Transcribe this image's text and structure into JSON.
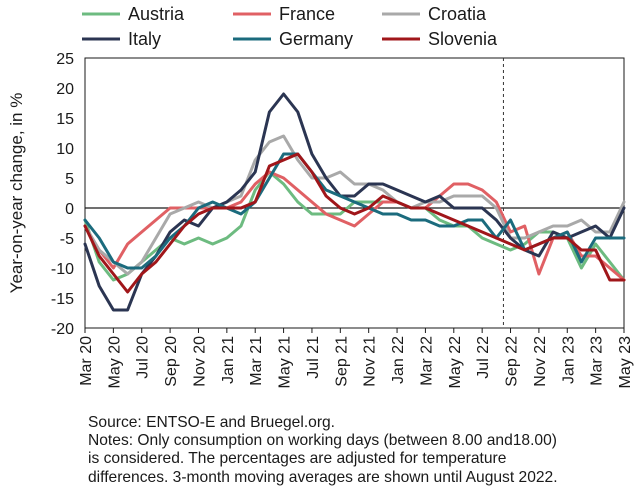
{
  "chart_data": {
    "type": "line",
    "ylabel": "Year-on-year change, in %",
    "ylim": [
      -20,
      25
    ],
    "yticks": [
      25,
      20,
      15,
      10,
      5,
      0,
      -5,
      -10,
      -15,
      -20
    ],
    "grid": false,
    "legend_position": "top",
    "x": [
      "Mar 20",
      "Apr 20",
      "May 20",
      "Jun 20",
      "Jul 20",
      "Aug 20",
      "Sep 20",
      "Oct 20",
      "Nov 20",
      "Dec 20",
      "Jan 21",
      "Feb 21",
      "Mar 21",
      "Apr 21",
      "May 21",
      "Jun 21",
      "Jul 21",
      "Aug 21",
      "Sep 21",
      "Oct 21",
      "Nov 21",
      "Dec 21",
      "Jan 22",
      "Feb 22",
      "Mar 22",
      "Apr 22",
      "May 22",
      "Jun 22",
      "Jul 22",
      "Aug 22",
      "Sep 22",
      "Oct 22",
      "Nov 22",
      "Dec 22",
      "Jan 23",
      "Feb 23",
      "Mar 23",
      "Apr 23",
      "May 23"
    ],
    "x_tick_labels": [
      "Mar 20",
      "May 20",
      "Jul 20",
      "Sep 20",
      "Nov 20",
      "Jan 21",
      "Mar 21",
      "May 21",
      "Jul 21",
      "Sep 21",
      "Nov 21",
      "Jan 22",
      "Mar 22",
      "May 22",
      "Jul 22",
      "Sep 22",
      "Nov 22",
      "Jan 23",
      "Mar 23",
      "May 23"
    ],
    "reference_line_after": "Aug 22",
    "series": [
      {
        "name": "Austria",
        "color": "#6dbb80",
        "values": [
          -2,
          -9,
          -12,
          -11,
          -9,
          -7,
          -5,
          -6,
          -5,
          -6,
          -5,
          -3,
          3,
          6,
          4,
          1,
          -1,
          -1,
          -1,
          1,
          1,
          1,
          1,
          0,
          0,
          -2,
          -3,
          -3,
          -5,
          -6,
          -7,
          -6,
          -4,
          -4,
          -5,
          -10,
          -6,
          -9,
          -12
        ]
      },
      {
        "name": "France",
        "color": "#e06064",
        "values": [
          -3,
          -7,
          -10,
          -6,
          -4,
          -2,
          0,
          0,
          0,
          0,
          0,
          1,
          4,
          6,
          5,
          3,
          1,
          -1,
          -2,
          -3,
          -1,
          1,
          1,
          0,
          0,
          2,
          4,
          4,
          3,
          1,
          -4,
          -3,
          -11,
          -5,
          -4,
          -8,
          -8,
          -10,
          -12
        ]
      },
      {
        "name": "Croatia",
        "color": "#a9a9a9",
        "values": [
          -3,
          -7,
          -9,
          -11,
          -9,
          -5,
          -1,
          0,
          1,
          0,
          1,
          2,
          8,
          11,
          12,
          8,
          5,
          5,
          6,
          4,
          4,
          3,
          1,
          0,
          1,
          1,
          2,
          2,
          2,
          0,
          -5,
          -5,
          -4,
          -3,
          -3,
          -2,
          -4,
          -4,
          1
        ]
      },
      {
        "name": "Italy",
        "color": "#2b3552",
        "values": [
          -6,
          -13,
          -17,
          -17,
          -11,
          -8,
          -4,
          -2,
          -3,
          0,
          1,
          3,
          6,
          16,
          19,
          16,
          9,
          5,
          2,
          2,
          4,
          4,
          3,
          2,
          1,
          2,
          0,
          0,
          0,
          -2,
          -5,
          -7,
          -8,
          -4,
          -5,
          -4,
          -3,
          -5,
          0
        ]
      },
      {
        "name": "Germany",
        "color": "#1b6b7d",
        "values": [
          -2,
          -5,
          -9,
          -10,
          -10,
          -8,
          -5,
          -3,
          0,
          1,
          0,
          -1,
          1,
          5,
          9,
          9,
          6,
          3,
          2,
          1,
          0,
          -1,
          -1,
          -2,
          -2,
          -3,
          -3,
          -2,
          -2,
          -5,
          -2,
          -7,
          -6,
          -5,
          -4,
          -9,
          -5,
          -5,
          -5
        ]
      },
      {
        "name": "Slovenia",
        "color": "#a0161a",
        "values": [
          -3,
          -8,
          -11,
          -14,
          -11,
          -9,
          -6,
          -3,
          -1,
          0,
          0,
          0,
          1,
          7,
          8,
          9,
          6,
          2,
          0,
          -1,
          0,
          2,
          1,
          0,
          0,
          -1,
          -2,
          -3,
          -4,
          -5,
          -6,
          -7,
          -6,
          -5,
          -5,
          -7,
          -7,
          -12,
          -12
        ]
      }
    ]
  },
  "notes": {
    "source": "Source: ENTSO-E and Bruegel.org.",
    "line1": "Notes: Only consumption on working days (between 8.00 and18.00)",
    "line2": "is considered. The percentages are adjusted for temperature",
    "line3": "differences. 3-month moving averages are shown until August 2022."
  }
}
